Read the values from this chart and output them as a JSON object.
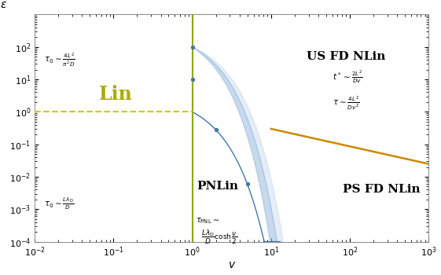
{
  "xlim": [
    0.01,
    1000
  ],
  "ylim": [
    0.0001,
    1000.0
  ],
  "xlabel": "v",
  "ylabel": "ε",
  "background_color": "#ffffff",
  "vertical_line_x": 1.0,
  "vertical_line_color": "#8aaa00",
  "dashed_line_color": "#cccc00",
  "orange_line_color": "#cc8800",
  "blue_curve_color": "#4477aa",
  "blue_fill_color": "#99bbdd",
  "text_Lin_color": "#aaaa00",
  "figsize": [
    5.61,
    3.5
  ],
  "dpi": 100
}
